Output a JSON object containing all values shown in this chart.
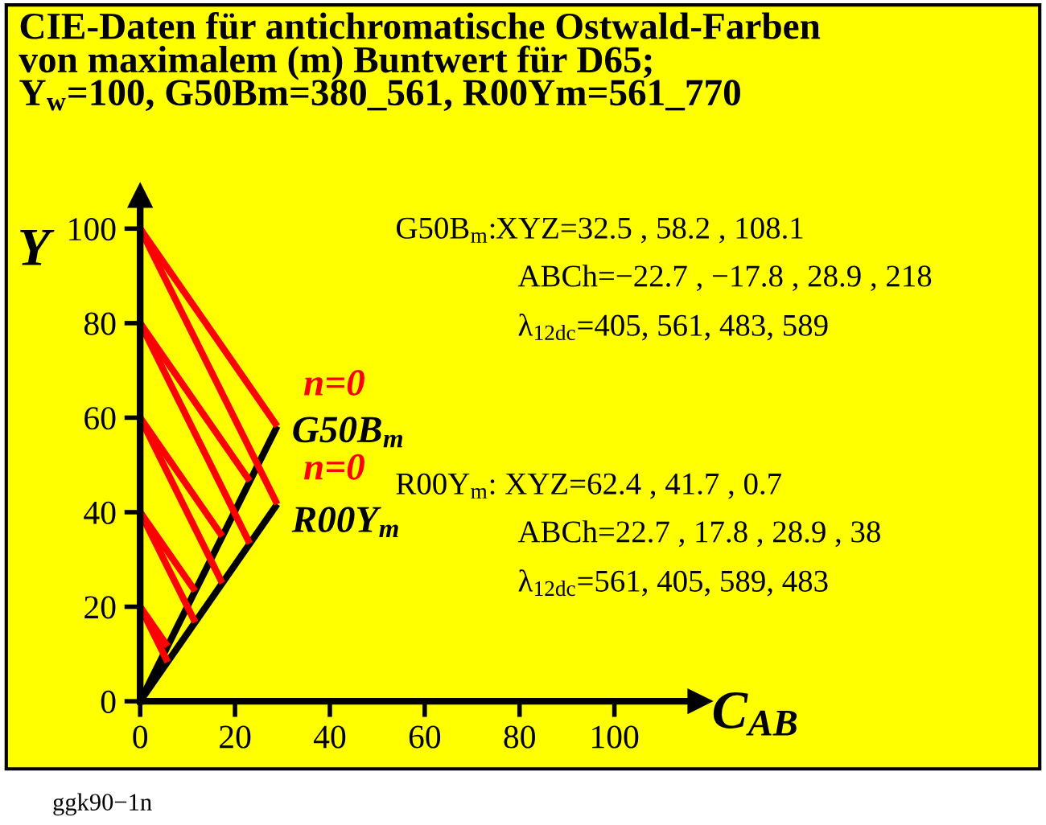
{
  "chart_data": {
    "type": "line",
    "title": "CIE-Daten für antichromatische Ostwald-Farben\nvon maximalem (m) Buntwert für D65;\nY$_{w}$=100, G50Bm=380_561, R00Ym=561_770",
    "xlabel": "C$_{AB}$",
    "ylabel": "Y",
    "xlim": [
      0,
      118
    ],
    "ylim": [
      0,
      107
    ],
    "xticks": [
      0,
      20,
      40,
      60,
      80,
      100
    ],
    "yticks": [
      0,
      20,
      40,
      60,
      80,
      100
    ],
    "grid": false,
    "marker": "none",
    "line_style": "solid",
    "series": [
      {
        "color": "#000000",
        "x": [
          0,
          28.9
        ],
        "values": [
          0,
          58.2
        ]
      },
      {
        "color": "#000000",
        "x": [
          0,
          28.9
        ],
        "values": [
          0,
          41.7
        ]
      },
      {
        "color": "#ff0000",
        "x": [
          0,
          28.9
        ],
        "values": [
          100,
          58.2
        ]
      },
      {
        "color": "#ff0000",
        "x": [
          0,
          28.9
        ],
        "values": [
          100,
          41.7
        ]
      },
      {
        "color": "#ff0000",
        "x": [
          0,
          23.1
        ],
        "values": [
          80,
          46.6
        ]
      },
      {
        "color": "#ff0000",
        "x": [
          0,
          23.1
        ],
        "values": [
          80,
          33.4
        ]
      },
      {
        "color": "#ff0000",
        "x": [
          0,
          17.3
        ],
        "values": [
          60,
          34.9
        ]
      },
      {
        "color": "#ff0000",
        "x": [
          0,
          17.3
        ],
        "values": [
          60,
          25.0
        ]
      },
      {
        "color": "#ff0000",
        "x": [
          0,
          11.6
        ],
        "values": [
          40,
          23.3
        ]
      },
      {
        "color": "#ff0000",
        "x": [
          0,
          11.6
        ],
        "values": [
          40,
          16.7
        ]
      },
      {
        "color": "#ff0000",
        "x": [
          0,
          5.8
        ],
        "values": [
          20,
          11.6
        ]
      },
      {
        "color": "#ff0000",
        "x": [
          0,
          5.8
        ],
        "values": [
          20,
          8.3
        ]
      }
    ],
    "annotations": [
      "n=0",
      "n=0",
      "G50B$_{m}$",
      "R00Y$_{m}$",
      "G50B$_{m}$:XYZ=32.5 , 58.2 , 108.1",
      "ABCh=−22.7 , −17.8 , 28.9 , 218",
      "λ$_{12dc}$=405, 561, 483, 589",
      "R00Y$_{m}$: XYZ=62.4 , 41.7 , 0.7",
      "ABCh=22.7 , 17.8 , 28.9 , 38",
      "λ$_{12dc}$=561, 405, 589, 483",
      "ggk90−1n"
    ]
  }
}
